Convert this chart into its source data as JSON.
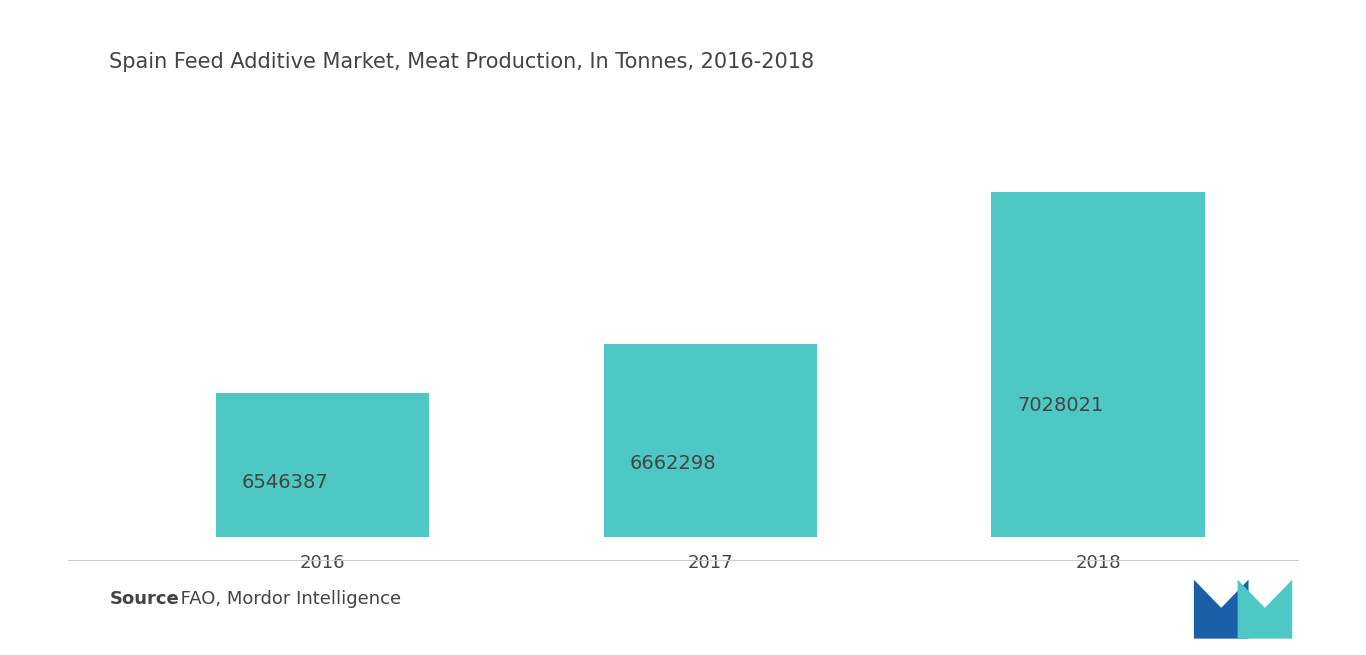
{
  "title": "Spain Feed Additive Market, Meat Production, In Tonnes, 2016-2018",
  "categories": [
    "2016",
    "2017",
    "2018"
  ],
  "values": [
    6546387,
    6662298,
    7028021
  ],
  "bar_color": "#4DC8C4",
  "bar_width": 0.55,
  "label_color": "#444444",
  "label_fontsize": 14,
  "title_fontsize": 15,
  "tick_fontsize": 13,
  "background_color": "#ffffff",
  "ylim_min": 6200000,
  "ylim_max": 7300000,
  "source_bold": "Source",
  "source_normal": " : FAO, Mordor Intelligence",
  "source_fontsize": 13,
  "logo_color_dark": "#1a5fa8",
  "logo_color_teal": "#4DC8C4"
}
